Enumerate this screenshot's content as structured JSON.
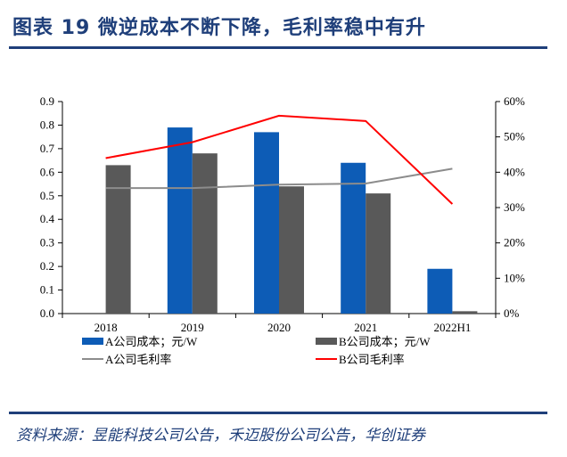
{
  "figure": {
    "title": "图表 19   微逆成本不断下降，毛利率稳中有升",
    "source": "资料来源：昱能科技公司公告，禾迈股份公司公告，华创证券"
  },
  "colors": {
    "header": "#1f3f7a",
    "bar_a": "#0d5cb6",
    "bar_b": "#595959",
    "line_a": "#8c8c8c",
    "line_b": "#ff0000",
    "axis": "#000000"
  },
  "chart_data": {
    "type": "bar",
    "categories": [
      "2018",
      "2019",
      "2020",
      "2021",
      "2022H1"
    ],
    "y_left": {
      "ylim": [
        0,
        0.9
      ],
      "ticks": [
        "0.0",
        "0.1",
        "0.2",
        "0.3",
        "0.4",
        "0.5",
        "0.6",
        "0.7",
        "0.8",
        "0.9"
      ]
    },
    "y_right": {
      "ylim": [
        0,
        60
      ],
      "ticks": [
        "0%",
        "10%",
        "20%",
        "30%",
        "40%",
        "50%",
        "60%"
      ]
    },
    "series": [
      {
        "name": "A公司成本；元/W",
        "type": "bar",
        "axis": "left",
        "values": [
          null,
          0.79,
          0.77,
          0.64,
          0.19
        ]
      },
      {
        "name": "B公司成本；元/W",
        "type": "bar",
        "axis": "left",
        "values": [
          0.63,
          0.68,
          0.54,
          0.51,
          0.01
        ]
      },
      {
        "name": "A公司毛利率",
        "type": "line",
        "axis": "right",
        "values": [
          35.5,
          35.5,
          36.5,
          36.8,
          41.0
        ]
      },
      {
        "name": "B公司毛利率",
        "type": "line",
        "axis": "right",
        "values": [
          44.0,
          48.5,
          56.0,
          54.5,
          31.0
        ]
      }
    ],
    "legend": [
      "A公司成本；元/W",
      "B公司成本；元/W",
      "A公司毛利率",
      "B公司毛利率"
    ],
    "legend_position": "bottom",
    "grid": false
  }
}
